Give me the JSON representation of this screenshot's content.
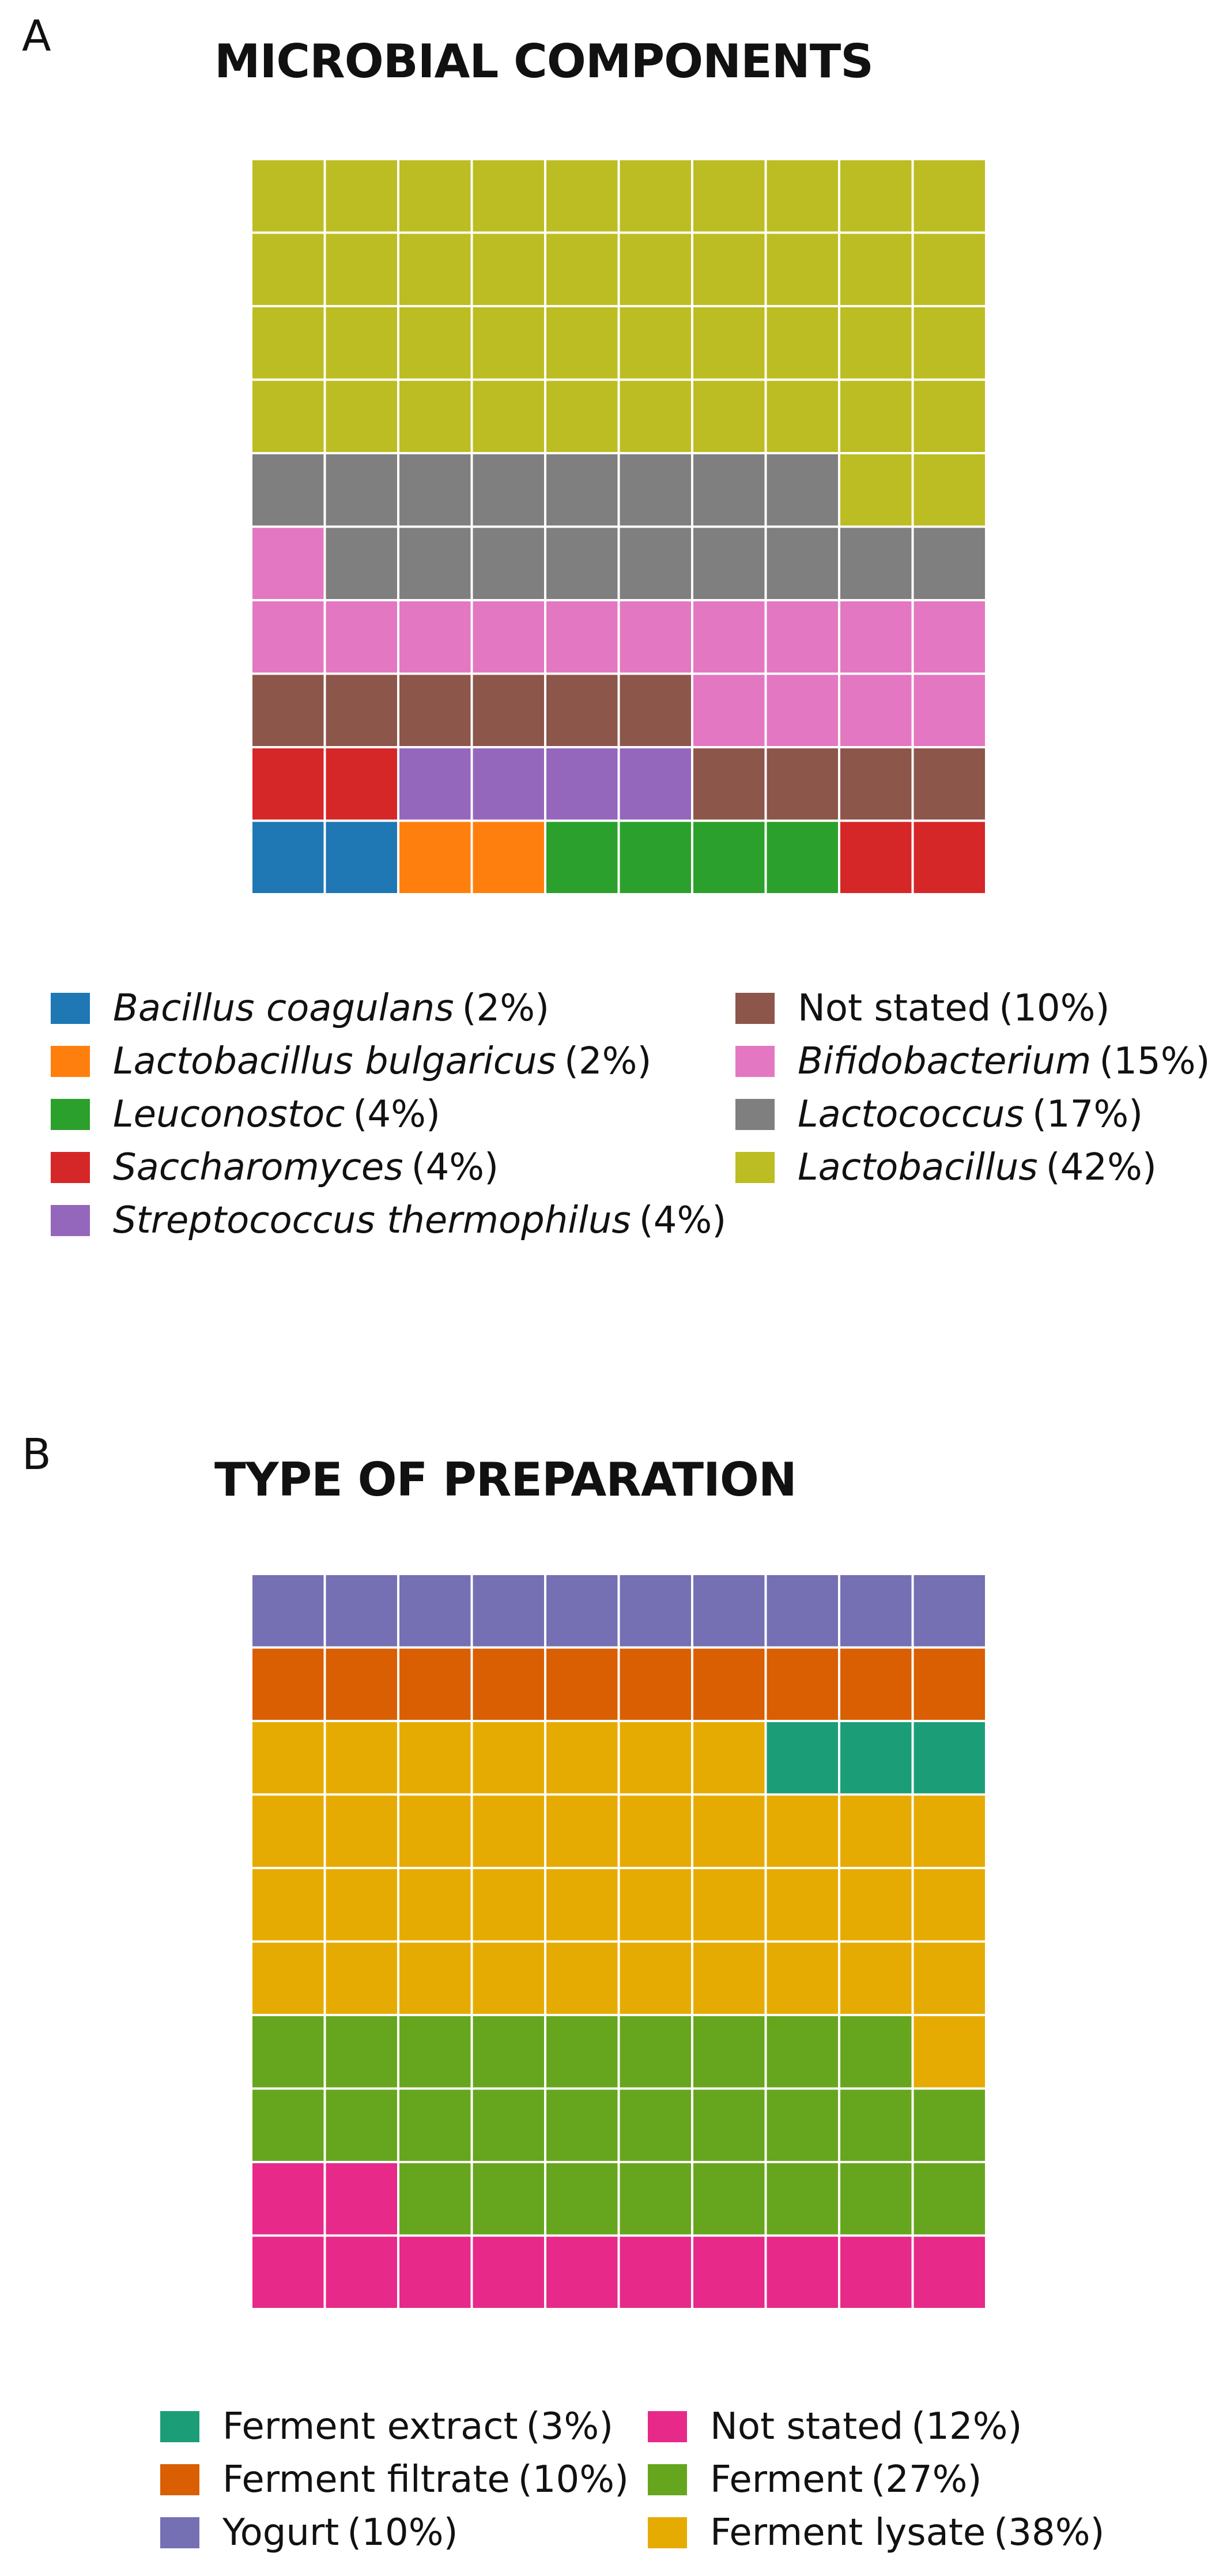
{
  "chart_data": [
    {
      "type": "waffle",
      "panel": "A",
      "title": "MICROBIAL COMPONENTS",
      "grid": {
        "rows": 10,
        "cols": 10
      },
      "fill_order": "bottom-up, row by row left to right",
      "categories": [
        {
          "name": "Bacillus coagulans",
          "pct": "(2%)",
          "value": 2,
          "color": "#1f77b4",
          "italic": true
        },
        {
          "name": "Lactobacillus bulgaricus",
          "pct": "(2%)",
          "value": 2,
          "color": "#ff7f0e",
          "italic": true
        },
        {
          "name": "Leuconostoc",
          "pct": "(4%)",
          "value": 4,
          "color": "#2ca02c",
          "italic": true
        },
        {
          "name": "Saccharomyces",
          "pct": "(4%)",
          "value": 4,
          "color": "#d62728",
          "italic": true
        },
        {
          "name": "Streptococcus thermophilus",
          "pct": "(4%)",
          "value": 4,
          "color": "#9467bd",
          "italic": true
        },
        {
          "name": "Not stated",
          "pct": "(10%)",
          "value": 10,
          "color": "#8c564b",
          "italic": false
        },
        {
          "name": "Bifidobacterium",
          "pct": "(15%)",
          "value": 15,
          "color": "#e377c2",
          "italic": true
        },
        {
          "name": "Lactococcus",
          "pct": "(17%)",
          "value": 17,
          "color": "#7f7f7f",
          "italic": true
        },
        {
          "name": "Lactobacillus",
          "pct": "(42%)",
          "value": 42,
          "color": "#bcbd22",
          "italic": true
        }
      ]
    },
    {
      "type": "waffle",
      "panel": "B",
      "title": "TYPE OF PREPARATION",
      "grid": {
        "rows": 10,
        "cols": 10
      },
      "fill_order": "bottom-up, row by row left to right",
      "categories": [
        {
          "name": "Not stated",
          "pct": "(12%)",
          "value": 12,
          "color": "#e7298a",
          "italic": false
        },
        {
          "name": "Ferment",
          "pct": "(27%)",
          "value": 27,
          "color": "#66a61e",
          "italic": false
        },
        {
          "name": "Ferment lysate",
          "pct": "(38%)",
          "value": 38,
          "color": "#e6ab02",
          "italic": false
        },
        {
          "name": "Ferment extract",
          "pct": "(3%)",
          "value": 3,
          "color": "#1b9e77",
          "italic": false
        },
        {
          "name": "Ferment filtrate",
          "pct": "(10%)",
          "value": 10,
          "color": "#d95f02",
          "italic": false
        },
        {
          "name": "Yogurt",
          "pct": "(10%)",
          "value": 10,
          "color": "#7570b3",
          "italic": false
        }
      ],
      "legend_order": [
        "Ferment extract",
        "Ferment filtrate",
        "Yogurt",
        "Not stated",
        "Ferment",
        "Ferment lysate"
      ]
    }
  ]
}
